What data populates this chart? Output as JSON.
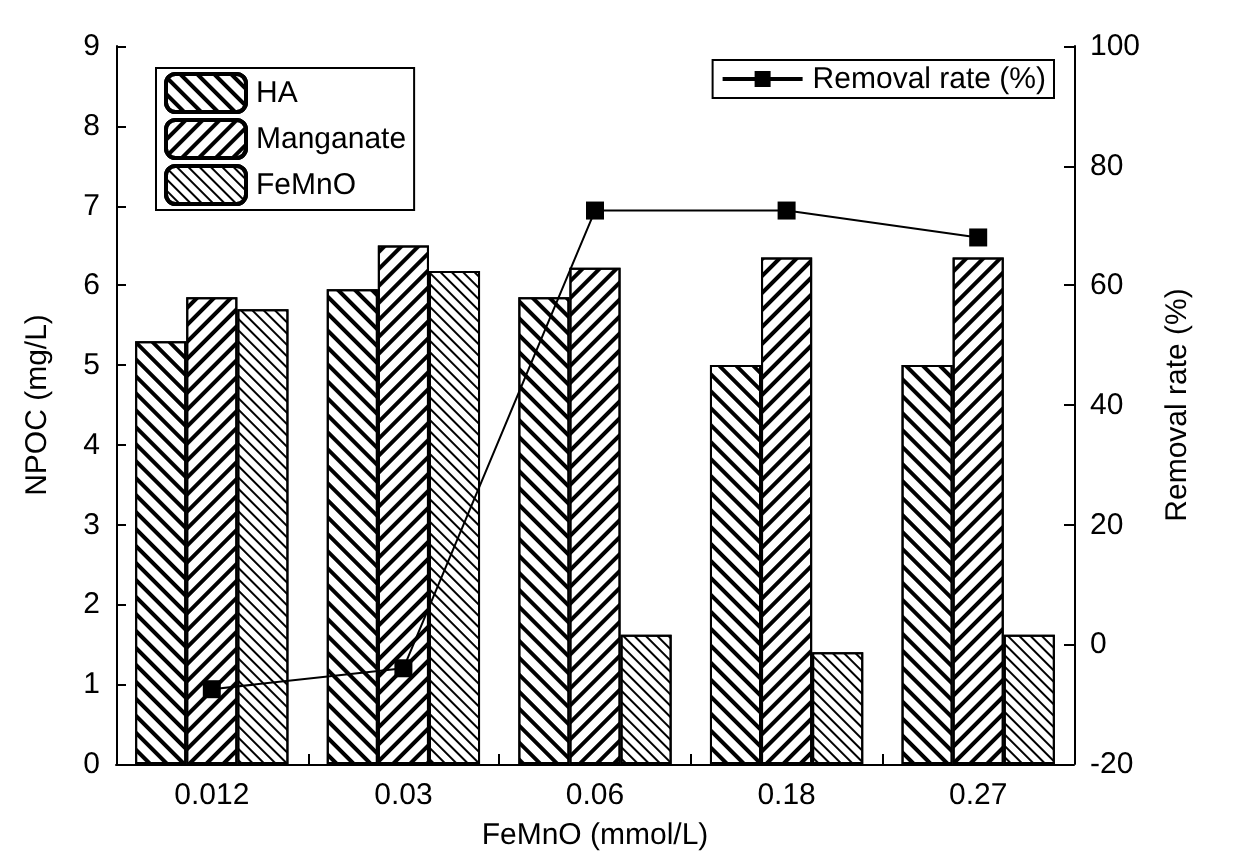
{
  "chart_data": {
    "type": "bar",
    "xlabel": "FeMnO (mmol/L)",
    "ylabel": "NPOC (mg/L)",
    "y2label": "Removal rate (%)",
    "categories": [
      "0.012",
      "0.03",
      "0.06",
      "0.18",
      "0.27"
    ],
    "series": [
      {
        "name": "HA",
        "color": "#000000",
        "values": [
          5.3,
          5.95,
          5.85,
          5.0,
          5.0
        ]
      },
      {
        "name": "Manganate",
        "color": "#000000",
        "values": [
          5.85,
          6.5,
          6.22,
          6.35,
          6.35
        ]
      },
      {
        "name": "FeMnO",
        "color": "#000000",
        "values": [
          5.7,
          6.18,
          1.62,
          1.4,
          1.62
        ]
      },
      {
        "name": "Removal rate (%)",
        "type": "line",
        "axis": "y2",
        "color": "#000000",
        "marker": "square",
        "values": [
          -7.5,
          -4,
          72.5,
          72.5,
          68
        ]
      }
    ],
    "ylim": [
      0,
      9
    ],
    "yticks": [
      0,
      1,
      2,
      3,
      4,
      5,
      6,
      7,
      8,
      9
    ],
    "y2lim": [
      -20,
      100
    ],
    "y2ticks": [
      -20,
      0,
      20,
      40,
      60,
      80,
      100
    ],
    "grid": false,
    "legend": "top left"
  }
}
